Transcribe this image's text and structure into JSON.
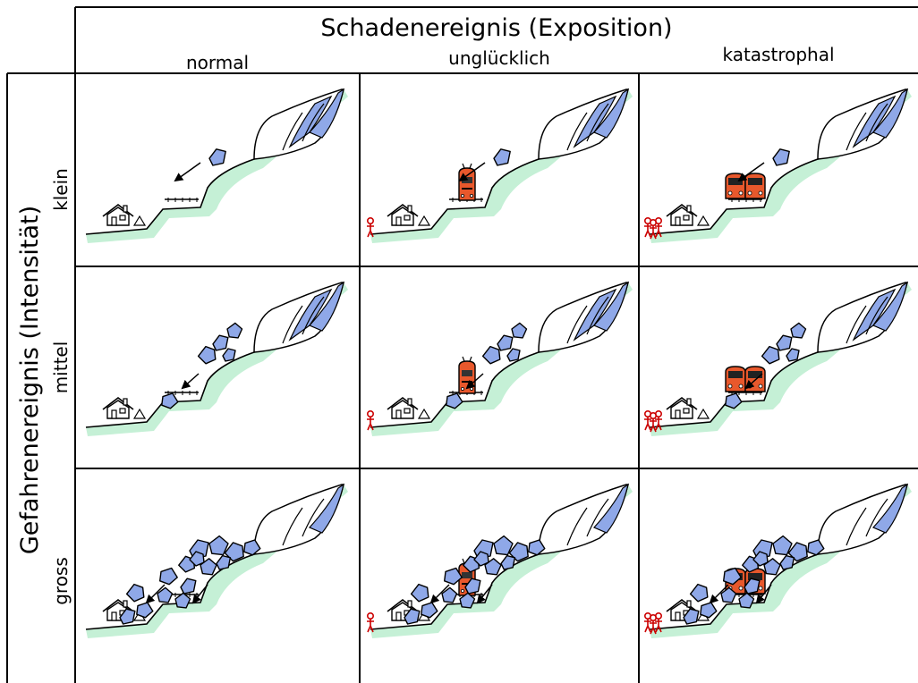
{
  "column_header": {
    "title": "Schadenereignis (Exposition)",
    "columns": [
      "normal",
      "unglücklich",
      "katastrophal"
    ]
  },
  "row_header": {
    "title": "Gefahrenereignis (Intensität)",
    "rows": [
      "klein",
      "mittel",
      "gross"
    ]
  },
  "cells": [
    [
      {
        "rock_level": "small",
        "train_count": 0,
        "people_count": 0
      },
      {
        "rock_level": "small",
        "train_count": 1,
        "people_count": 1
      },
      {
        "rock_level": "small",
        "train_count": 2,
        "people_count": 3
      }
    ],
    [
      {
        "rock_level": "medium",
        "train_count": 0,
        "people_count": 0
      },
      {
        "rock_level": "medium",
        "train_count": 1,
        "people_count": 1
      },
      {
        "rock_level": "medium",
        "train_count": 2,
        "people_count": 3
      }
    ],
    [
      {
        "rock_level": "large",
        "train_count": 0,
        "people_count": 0
      },
      {
        "rock_level": "large",
        "train_count": 1,
        "people_count": 1
      },
      {
        "rock_level": "large",
        "train_count": 2,
        "people_count": 3
      }
    ]
  ],
  "colors": {
    "rock_fill": "#8fa8e8",
    "ground_fill": "#c5f0d6",
    "train_fill": "#e8582c",
    "person_stroke": "#cc0000",
    "line": "#000000"
  },
  "icons": [
    "house-icon",
    "train-icon",
    "person-icon",
    "rock-icon",
    "cliff-icon",
    "arrow-icon",
    "rail-track-icon"
  ]
}
